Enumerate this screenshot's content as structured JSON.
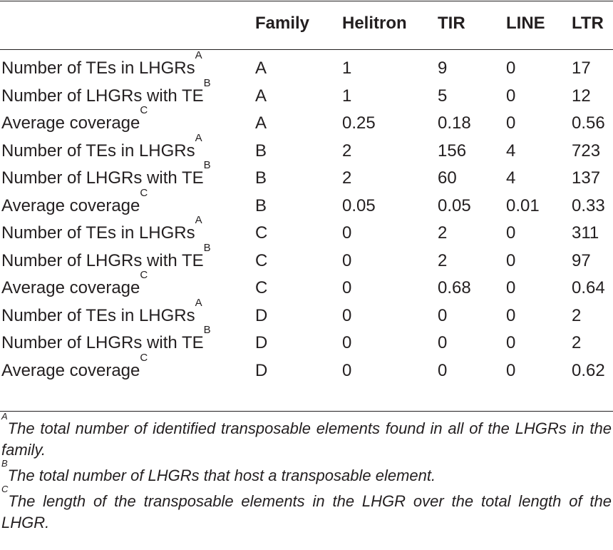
{
  "table": {
    "headers": [
      "",
      "Family",
      "Helitron",
      "TIR",
      "LINE",
      "LTR"
    ],
    "rows": [
      {
        "label": "Number of TEs in LHGRs",
        "sup": "A",
        "family": "A",
        "helitron": "1",
        "tir": "9",
        "line": "0",
        "ltr": "17"
      },
      {
        "label": "Number of LHGRs with TE",
        "sup": "B",
        "family": "A",
        "helitron": "1",
        "tir": "5",
        "line": "0",
        "ltr": "12"
      },
      {
        "label": "Average coverage",
        "sup": "C",
        "family": "A",
        "helitron": "0.25",
        "tir": "0.18",
        "line": "0",
        "ltr": "0.56"
      },
      {
        "label": "Number of TEs in LHGRs",
        "sup": "A",
        "family": "B",
        "helitron": "2",
        "tir": "156",
        "line": "4",
        "ltr": "723"
      },
      {
        "label": "Number of LHGRs with TE",
        "sup": "B",
        "family": "B",
        "helitron": "2",
        "tir": "60",
        "line": "4",
        "ltr": "137"
      },
      {
        "label": "Average coverage",
        "sup": "C",
        "family": "B",
        "helitron": "0.05",
        "tir": "0.05",
        "line": "0.01",
        "ltr": "0.33"
      },
      {
        "label": "Number of TEs in LHGRs",
        "sup": "A",
        "family": "C",
        "helitron": "0",
        "tir": "2",
        "line": "0",
        "ltr": "311"
      },
      {
        "label": "Number of LHGRs with TE",
        "sup": "B",
        "family": "C",
        "helitron": "0",
        "tir": "2",
        "line": "0",
        "ltr": "97"
      },
      {
        "label": "Average coverage",
        "sup": "C",
        "family": "C",
        "helitron": "0",
        "tir": "0.68",
        "line": "0",
        "ltr": "0.64"
      },
      {
        "label": "Number of TEs in LHGRs",
        "sup": "A",
        "family": "D",
        "helitron": "0",
        "tir": "0",
        "line": "0",
        "ltr": "2"
      },
      {
        "label": "Number of LHGRs with TE",
        "sup": "B",
        "family": "D",
        "helitron": "0",
        "tir": "0",
        "line": "0",
        "ltr": "2"
      },
      {
        "label": "Average coverage",
        "sup": "C",
        "family": "D",
        "helitron": "0",
        "tir": "0",
        "line": "0",
        "ltr": "0.62"
      }
    ]
  },
  "footnotes": [
    {
      "mark": "A",
      "text": "The total number of identified transposable elements found in all of the LHGRs in the family."
    },
    {
      "mark": "B",
      "text": "The total number of LHGRs that host a transposable element."
    },
    {
      "mark": "C",
      "text": "The length of the transposable elements in the LHGR over the total length of the LHGR."
    }
  ]
}
